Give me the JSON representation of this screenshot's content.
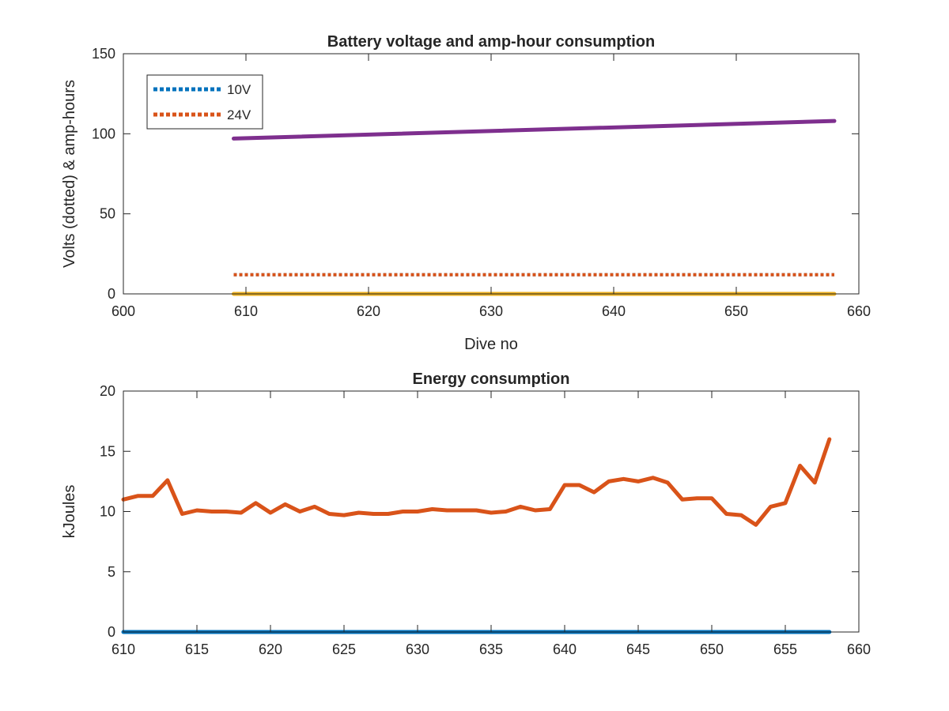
{
  "chart_data": [
    {
      "type": "line",
      "title": "Battery voltage and amp-hour consumption",
      "xlabel": "Dive no",
      "ylabel": "Volts (dotted) & amp-hours",
      "xlim": [
        600,
        660
      ],
      "ylim": [
        0,
        150
      ],
      "xticks": [
        600,
        610,
        620,
        630,
        640,
        650,
        660
      ],
      "yticks": [
        0,
        50,
        100,
        150
      ],
      "legend": "top-left",
      "series": [
        {
          "name": "10V",
          "style": "dotted",
          "color": "#0072BD",
          "x": [
            609,
            658
          ],
          "y": [
            12,
            12
          ]
        },
        {
          "name": "24V",
          "style": "dotted",
          "color": "#D95319",
          "x": [
            609,
            658
          ],
          "y": [
            12,
            12
          ]
        },
        {
          "style": "solid",
          "color": "#7E2F8E",
          "x": [
            609,
            658
          ],
          "y": [
            97,
            108
          ]
        },
        {
          "style": "solid",
          "color": "#EDB120",
          "x": [
            609,
            658
          ],
          "y": [
            0,
            0
          ]
        }
      ]
    },
    {
      "type": "line",
      "title": "Energy consumption",
      "xlabel": "",
      "ylabel": "kJoules",
      "xlim": [
        610,
        660
      ],
      "ylim": [
        0,
        20
      ],
      "xticks": [
        610,
        615,
        620,
        625,
        630,
        635,
        640,
        645,
        650,
        655,
        660
      ],
      "yticks": [
        0,
        5,
        10,
        15,
        20
      ],
      "series": [
        {
          "style": "solid",
          "color": "#D95319",
          "x": [
            610,
            611,
            612,
            613,
            614,
            615,
            616,
            617,
            618,
            619,
            620,
            621,
            622,
            623,
            624,
            625,
            626,
            627,
            628,
            629,
            630,
            631,
            632,
            633,
            634,
            635,
            636,
            637,
            638,
            639,
            640,
            641,
            642,
            643,
            644,
            645,
            646,
            647,
            648,
            649,
            650,
            651,
            652,
            653,
            654,
            655,
            656,
            657,
            658
          ],
          "y": [
            11.0,
            11.3,
            11.3,
            12.6,
            9.8,
            10.1,
            10.0,
            10.0,
            9.9,
            10.7,
            9.9,
            10.6,
            10.0,
            10.4,
            9.8,
            9.7,
            9.9,
            9.8,
            9.8,
            10.0,
            10.0,
            10.2,
            10.1,
            10.1,
            10.1,
            9.9,
            10.0,
            10.4,
            10.1,
            10.2,
            12.2,
            12.2,
            11.6,
            12.5,
            12.7,
            12.5,
            12.8,
            12.4,
            11.0,
            11.1,
            11.1,
            9.8,
            9.7,
            8.9,
            10.4,
            10.7,
            13.8,
            12.4,
            16.0
          ]
        },
        {
          "style": "solid",
          "color": "#0072BD",
          "x": [
            610,
            658
          ],
          "y": [
            0,
            0
          ]
        }
      ]
    }
  ]
}
